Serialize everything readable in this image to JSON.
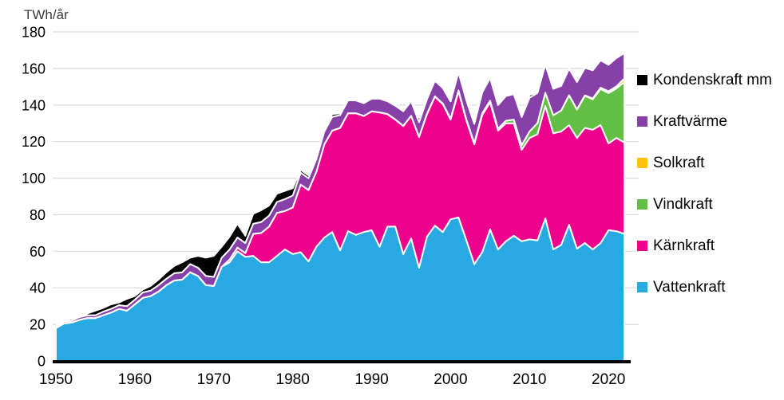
{
  "page": {
    "background": "#ffffff"
  },
  "chart_data": {
    "type": "area",
    "stacked": true,
    "title": "",
    "xlabel": "",
    "ylabel": "TWh/år",
    "xlim": [
      1950,
      2022
    ],
    "ylim": [
      0,
      180
    ],
    "yticks": [
      0,
      20,
      40,
      60,
      80,
      100,
      120,
      140,
      160,
      180
    ],
    "xticks": [
      1950,
      1960,
      1970,
      1980,
      1990,
      2000,
      2010,
      2020
    ],
    "grid": true,
    "legend_position": "right",
    "colors": {
      "grid": "#d9d9d9",
      "axis": "#000000",
      "text": "#000000",
      "separator": "#ffffff"
    },
    "x": [
      1950,
      1951,
      1952,
      1953,
      1954,
      1955,
      1956,
      1957,
      1958,
      1959,
      1960,
      1961,
      1962,
      1963,
      1964,
      1965,
      1966,
      1967,
      1968,
      1969,
      1970,
      1971,
      1972,
      1973,
      1974,
      1975,
      1976,
      1977,
      1978,
      1979,
      1980,
      1981,
      1982,
      1983,
      1984,
      1985,
      1986,
      1987,
      1988,
      1989,
      1990,
      1991,
      1992,
      1993,
      1994,
      1995,
      1996,
      1997,
      1998,
      1999,
      2000,
      2001,
      2002,
      2003,
      2004,
      2005,
      2006,
      2007,
      2008,
      2009,
      2010,
      2011,
      2012,
      2013,
      2014,
      2015,
      2016,
      2017,
      2018,
      2019,
      2020,
      2021,
      2022
    ],
    "series": [
      {
        "id": "vattenkraft",
        "name": "Vattenkraft",
        "color": "#29a9e1",
        "values": [
          18,
          20.5,
          21,
          22.5,
          23.5,
          23.5,
          25,
          26.5,
          28.5,
          27.5,
          31,
          34.5,
          35.5,
          38,
          41.5,
          44,
          44.5,
          48.5,
          46.5,
          41.5,
          41,
          51.5,
          54,
          60,
          57,
          57.5,
          54,
          54,
          57.5,
          61,
          58.5,
          59.5,
          54.5,
          62.5,
          67.5,
          70.5,
          60.5,
          71,
          69,
          70.5,
          71.5,
          62.5,
          73.5,
          73.5,
          58.5,
          67,
          51,
          68,
          74,
          70.5,
          77.5,
          78.5,
          66,
          53,
          59.5,
          72,
          61,
          65.5,
          68.5,
          65.5,
          66.5,
          66,
          78,
          61,
          63.5,
          74.5,
          61.5,
          64.5,
          61,
          64.5,
          71.5,
          71,
          69.5
        ]
      },
      {
        "id": "karnkraft",
        "name": "Kärnkraft",
        "color": "#ec008c",
        "values": [
          0,
          0,
          0,
          0,
          0,
          0,
          0,
          0,
          0,
          0,
          0,
          0,
          0,
          0,
          0,
          0,
          0,
          0,
          0,
          0,
          0,
          0,
          1.5,
          2,
          2,
          12,
          16,
          19.5,
          23.5,
          21,
          25.5,
          37,
          39,
          41,
          51,
          55.5,
          67,
          64.5,
          66.5,
          63.5,
          65,
          73.5,
          61.5,
          58.5,
          70,
          67,
          71.5,
          67,
          70.5,
          70,
          54.5,
          69,
          65.5,
          65.5,
          75,
          69.5,
          65,
          64.5,
          61.5,
          50,
          55.5,
          58,
          61.5,
          63.5,
          62,
          54.5,
          60.5,
          63,
          65.5,
          64.5,
          47.5,
          51,
          50
        ]
      },
      {
        "id": "vindkraft",
        "name": "Vindkraft",
        "color": "#63be45",
        "values": [
          0,
          0,
          0,
          0,
          0,
          0,
          0,
          0,
          0,
          0,
          0,
          0,
          0,
          0,
          0,
          0,
          0,
          0,
          0,
          0,
          0,
          0,
          0,
          0,
          0,
          0,
          0,
          0,
          0,
          0,
          0,
          0,
          0,
          0,
          0,
          0,
          0,
          0,
          0,
          0,
          0,
          0,
          0.1,
          0.1,
          0.1,
          0.1,
          0.1,
          0.2,
          0.3,
          0.4,
          0.5,
          0.5,
          0.6,
          0.7,
          0.9,
          0.9,
          1,
          1.4,
          2,
          2.5,
          3.5,
          6.1,
          7.2,
          9.9,
          11.5,
          16.3,
          15.5,
          17.6,
          16.6,
          19.8,
          27.5,
          27.1,
          33
        ]
      },
      {
        "id": "solkraft",
        "name": "Solkraft",
        "color": "#ffc20e",
        "values": [
          0,
          0,
          0,
          0,
          0,
          0,
          0,
          0,
          0,
          0,
          0,
          0,
          0,
          0,
          0,
          0,
          0,
          0,
          0,
          0,
          0,
          0,
          0,
          0,
          0,
          0,
          0,
          0,
          0,
          0,
          0,
          0,
          0,
          0,
          0,
          0,
          0,
          0,
          0,
          0,
          0,
          0,
          0,
          0,
          0,
          0,
          0,
          0,
          0,
          0,
          0,
          0,
          0,
          0,
          0,
          0,
          0,
          0,
          0,
          0,
          0,
          0,
          0,
          0,
          0,
          0.1,
          0.1,
          0.2,
          0.4,
          0.7,
          1,
          1.1,
          2
        ]
      },
      {
        "id": "kraftvarme",
        "name": "Kraftvärme",
        "color": "#8640a8",
        "values": [
          1,
          1,
          1,
          1.5,
          1.5,
          1.5,
          2,
          2,
          2,
          2.5,
          2.5,
          3,
          3,
          3.5,
          3.5,
          4,
          4,
          4.5,
          4.5,
          5,
          5,
          5,
          5.5,
          5.5,
          5.5,
          5.5,
          6,
          6,
          6,
          6.5,
          6.5,
          6.5,
          6.5,
          7,
          7,
          7.5,
          7,
          7,
          7,
          7,
          7,
          7.5,
          7,
          7.5,
          8,
          8,
          8,
          8,
          8.5,
          8.5,
          9.5,
          10,
          10.5,
          10.5,
          11.5,
          12.5,
          13,
          13.5,
          14,
          15.5,
          18.5,
          16.5,
          15.5,
          14.5,
          13.5,
          14.5,
          15,
          15,
          15.5,
          15,
          14.5,
          15.5,
          14
        ]
      },
      {
        "id": "kondenskraft-mm",
        "name": "Kondenskraft mm",
        "color": "#000000",
        "values": [
          0.5,
          0.5,
          1,
          0.5,
          1,
          2.5,
          2,
          2.5,
          1.5,
          4,
          2,
          1.5,
          2.5,
          3,
          3.5,
          4,
          5.5,
          3.5,
          6.5,
          10,
          11.5,
          6,
          7,
          7.5,
          4,
          5.5,
          6.5,
          5.5,
          4.5,
          4.5,
          4,
          1.5,
          1.5,
          1,
          1,
          1.5,
          1,
          0.5,
          0.5,
          0.5,
          0.5,
          0.5,
          0.5,
          0.5,
          1,
          1,
          2.5,
          0.5,
          0.5,
          0.5,
          0.5,
          0.5,
          1,
          1.5,
          1,
          1,
          1,
          0.5,
          0.5,
          1,
          1.5,
          0.5,
          0.5,
          0.5,
          0.5,
          0.3,
          0.3,
          0.3,
          0.3,
          0.3,
          0.3,
          0.5,
          0.5
        ]
      }
    ],
    "legend": [
      {
        "id": "kondenskraft-mm",
        "label": "Kondenskraft mm",
        "color": "#000000"
      },
      {
        "id": "kraftvarme",
        "label": "Kraftvärme",
        "color": "#8640a8"
      },
      {
        "id": "solkraft",
        "label": "Solkraft",
        "color": "#ffc20e"
      },
      {
        "id": "vindkraft",
        "label": "Vindkraft",
        "color": "#63be45"
      },
      {
        "id": "karnkraft",
        "label": "Kärnkraft",
        "color": "#ec008c"
      },
      {
        "id": "vattenkraft",
        "label": "Vattenkraft",
        "color": "#29a9e1"
      }
    ]
  }
}
